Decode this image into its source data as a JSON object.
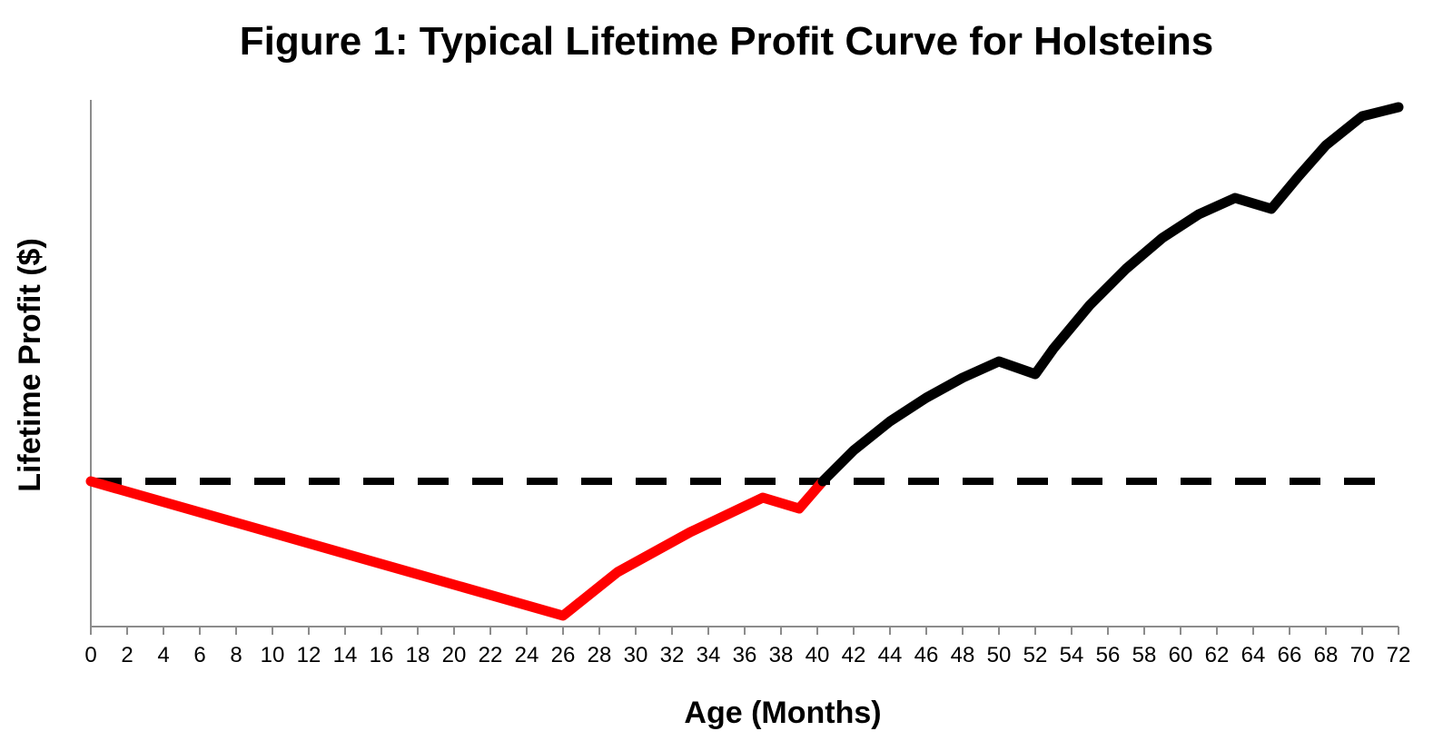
{
  "chart_data": {
    "type": "line",
    "title": "Figure 1: Typical Lifetime Profit Curve for Holsteins",
    "xlabel": "Age (Months)",
    "ylabel": "Lifetime Profit ($)",
    "xlim": [
      0,
      72
    ],
    "ylim": [
      -8,
      21
    ],
    "x_ticks": [
      "0",
      "2",
      "4",
      "6",
      "8",
      "10",
      "12",
      "14",
      "16",
      "18",
      "20",
      "22",
      "24",
      "26",
      "28",
      "30",
      "32",
      "34",
      "36",
      "38",
      "40",
      "42",
      "44",
      "46",
      "48",
      "50",
      "52",
      "54",
      "56",
      "58",
      "60",
      "62",
      "64",
      "66",
      "68",
      "70",
      "72"
    ],
    "y_ticks_shown": false,
    "grid": false,
    "legend": "none",
    "series": [
      {
        "color": "#ff0000",
        "style": "solid",
        "x": [
          0,
          26,
          29,
          33,
          37,
          39,
          40.3
        ],
        "y": [
          0,
          -7.4,
          -5,
          -2.8,
          -0.9,
          -1.5,
          0
        ]
      },
      {
        "color": "#000000",
        "style": "solid",
        "x": [
          40.3,
          42,
          44,
          46,
          48,
          50,
          52,
          53,
          55,
          57,
          59,
          61,
          63,
          65,
          66.5,
          68,
          70,
          72
        ],
        "y": [
          0,
          1.7,
          3.3,
          4.6,
          5.7,
          6.6,
          5.9,
          7.3,
          9.7,
          11.7,
          13.4,
          14.7,
          15.6,
          15,
          16.8,
          18.5,
          20.1,
          20.6
        ]
      },
      {
        "color": "#000000",
        "style": "dashed",
        "x": [
          0,
          71.5
        ],
        "y": [
          0,
          0
        ]
      }
    ]
  }
}
